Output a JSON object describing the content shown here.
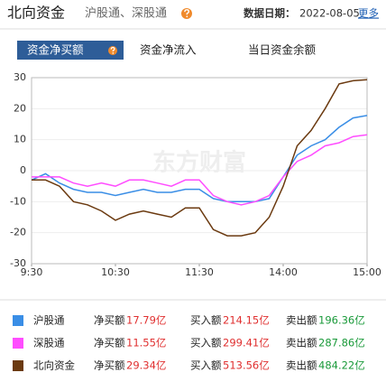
{
  "header": {
    "title": "北向资金",
    "subtitle": "沪股通、深股通",
    "date_label": "数据日期：",
    "date": "2022-08-05",
    "more": "更多"
  },
  "tabs": [
    "资金净买额",
    "资金净流入",
    "当日资金余额"
  ],
  "chart_data": {
    "type": "line",
    "watermark": "东方财富",
    "x": [
      0,
      10,
      20,
      30,
      40,
      50,
      60,
      70,
      80,
      90,
      100,
      110,
      120,
      130,
      140,
      150,
      160,
      170,
      180,
      190,
      200,
      210,
      220,
      230,
      240
    ],
    "xlim": [
      0,
      240
    ],
    "xticks": [
      {
        "value": 0,
        "label": "9:30"
      },
      {
        "value": 60,
        "label": "10:30"
      },
      {
        "value": 120,
        "label": "11:30"
      },
      {
        "value": 180,
        "label": "14:00"
      },
      {
        "value": 240,
        "label": "15:00"
      }
    ],
    "ylim": [
      -30,
      30
    ],
    "yticks": [
      -30,
      -20,
      -10,
      0,
      10,
      20,
      30
    ],
    "grid": true,
    "series": [
      {
        "name": "沪股通",
        "color": "#3a8ee6",
        "values": [
          -3,
          -1,
          -4,
          -6,
          -7,
          -7,
          -8,
          -7,
          -6,
          -7,
          -7,
          -6,
          -6,
          -9,
          -10,
          -10,
          -10,
          -9,
          -2,
          5,
          8,
          10,
          14,
          17,
          17.79
        ]
      },
      {
        "name": "深股通",
        "color": "#ff4dff",
        "values": [
          -2,
          -2,
          -2,
          -4,
          -5,
          -4,
          -5,
          -3,
          -3,
          -4,
          -5,
          -3,
          -3,
          -8,
          -10,
          -11,
          -10,
          -8,
          -2,
          3,
          5,
          8,
          9,
          11,
          11.55
        ]
      },
      {
        "name": "北向资金",
        "color": "#6b3a10",
        "values": [
          -3,
          -3,
          -5,
          -10,
          -11,
          -13,
          -16,
          -14,
          -13,
          -14,
          -15,
          -12,
          -12,
          -19,
          -21,
          -21,
          -20,
          -15,
          -5,
          8,
          13,
          20,
          28,
          29,
          29.34
        ]
      }
    ]
  },
  "legend_table": [
    {
      "net_label": "净买额",
      "net": "17.79亿",
      "buy_label": "买入额",
      "buy": "214.15亿",
      "sell_label": "卖出额",
      "sell": "196.36亿"
    },
    {
      "net_label": "净买额",
      "net": "11.55亿",
      "buy_label": "买入额",
      "buy": "299.41亿",
      "sell_label": "卖出额",
      "sell": "287.86亿"
    },
    {
      "net_label": "净买额",
      "net": "29.34亿",
      "buy_label": "买入额",
      "buy": "513.56亿",
      "sell_label": "卖出额",
      "sell": "484.22亿"
    }
  ]
}
